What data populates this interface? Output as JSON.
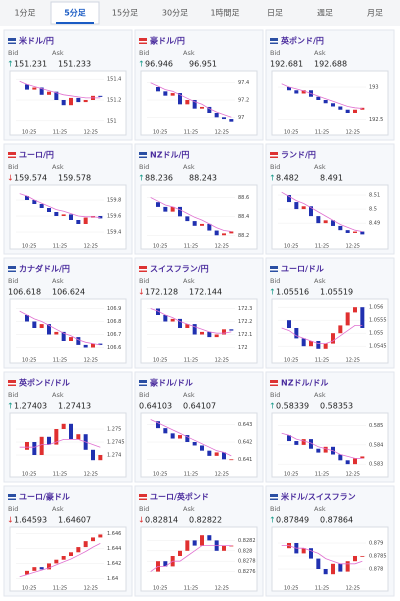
{
  "tabs": [
    "1分足",
    "5分足",
    "15分足",
    "30分足",
    "1時間足",
    "日足",
    "週足",
    "月足"
  ],
  "active_tab": 1,
  "bid_label": "Bid",
  "ask_label": "Ask",
  "time_labels": [
    "10:25",
    "11:25",
    "12:25"
  ],
  "cards": [
    {
      "name": "米ドル/円",
      "arrow": "↑",
      "bid": "151.231",
      "ask": "151.233",
      "ylim": [
        150.95,
        151.45
      ],
      "yticks": [
        151.4,
        151.2,
        151
      ],
      "closes": [
        151.35,
        151.3,
        151.32,
        151.25,
        151.28,
        151.2,
        151.15,
        151.22,
        151.18,
        151.2,
        151.24,
        151.23
      ],
      "ma": [
        151.38,
        151.35,
        151.33,
        151.31,
        151.29,
        151.27,
        151.25,
        151.24,
        151.23,
        151.22,
        151.22,
        151.22
      ]
    },
    {
      "name": "豪ドル/円",
      "arrow": "↑",
      "bid": "96.946",
      "ask": "96.951",
      "ylim": [
        96.9,
        97.5
      ],
      "yticks": [
        97.4,
        97.2,
        97
      ],
      "closes": [
        97.35,
        97.3,
        97.25,
        97.28,
        97.15,
        97.2,
        97.1,
        97.12,
        97.05,
        97.0,
        96.98,
        96.95
      ],
      "ma": [
        97.4,
        97.36,
        97.32,
        97.3,
        97.26,
        97.22,
        97.18,
        97.15,
        97.1,
        97.06,
        97.03,
        97.0
      ]
    },
    {
      "name": "英ポンド/円",
      "bid": "192.681",
      "ask": "192.688",
      "ylim": [
        192.4,
        193.2
      ],
      "yticks": [
        193,
        192.5
      ],
      "closes": [
        193.0,
        192.95,
        192.9,
        192.95,
        192.85,
        192.8,
        192.75,
        192.7,
        192.65,
        192.6,
        192.65,
        192.68
      ],
      "ma": [
        193.05,
        193.0,
        192.97,
        192.94,
        192.9,
        192.86,
        192.82,
        192.78,
        192.74,
        192.7,
        192.68,
        192.67
      ]
    },
    {
      "name": "ユーロ/円",
      "arrow": "↓",
      "bid": "159.574",
      "ask": "159.578",
      "ylim": [
        159.3,
        159.95
      ],
      "yticks": [
        159.8,
        159.6,
        159.4
      ],
      "closes": [
        159.85,
        159.8,
        159.75,
        159.7,
        159.65,
        159.6,
        159.62,
        159.55,
        159.5,
        159.58,
        159.6,
        159.57
      ],
      "ma": [
        159.88,
        159.85,
        159.8,
        159.76,
        159.72,
        159.68,
        159.66,
        159.63,
        159.6,
        159.59,
        159.59,
        159.58
      ]
    },
    {
      "name": "NZドル/円",
      "arrow": "↑",
      "bid": "88.236",
      "ask": "88.243",
      "ylim": [
        88.15,
        88.7
      ],
      "yticks": [
        88.6,
        88.4,
        88.2
      ],
      "closes": [
        88.55,
        88.5,
        88.45,
        88.5,
        88.4,
        88.35,
        88.3,
        88.32,
        88.25,
        88.2,
        88.22,
        88.24
      ],
      "ma": [
        88.6,
        88.56,
        88.52,
        88.5,
        88.47,
        88.43,
        88.39,
        88.36,
        88.32,
        88.28,
        88.25,
        88.24
      ]
    },
    {
      "name": "ランド/円",
      "arrow": "↑",
      "bid": "8.482",
      "ask": "8.491",
      "ylim": [
        8.478,
        8.515
      ],
      "yticks": [
        8.51,
        8.5,
        8.49
      ],
      "closes": [
        8.51,
        8.505,
        8.5,
        8.502,
        8.495,
        8.49,
        8.492,
        8.488,
        8.485,
        8.483,
        8.484,
        8.482
      ],
      "ma": [
        8.512,
        8.509,
        8.506,
        8.504,
        8.501,
        8.498,
        8.495,
        8.492,
        8.489,
        8.487,
        8.485,
        8.484
      ]
    },
    {
      "name": "カナダドル/円",
      "bid": "106.618",
      "ask": "106.624",
      "ylim": [
        106.55,
        106.95
      ],
      "yticks": [
        106.9,
        106.8,
        106.7,
        106.6
      ],
      "closes": [
        106.85,
        106.8,
        106.75,
        106.78,
        106.7,
        106.72,
        106.65,
        106.68,
        106.62,
        106.6,
        106.63,
        106.62
      ],
      "ma": [
        106.88,
        106.85,
        106.82,
        106.8,
        106.77,
        106.74,
        106.71,
        106.69,
        106.66,
        106.64,
        106.63,
        106.62
      ]
    },
    {
      "name": "スイスフラン/円",
      "arrow": "↓",
      "bid": "172.128",
      "ask": "172.144",
      "ylim": [
        171.95,
        172.35
      ],
      "yticks": [
        172.3,
        172.2,
        172.1,
        172
      ],
      "closes": [
        172.3,
        172.25,
        172.2,
        172.22,
        172.15,
        172.18,
        172.1,
        172.12,
        172.08,
        172.1,
        172.14,
        172.13
      ],
      "ma": [
        172.3,
        172.28,
        172.25,
        172.23,
        172.2,
        172.18,
        172.16,
        172.14,
        172.12,
        172.11,
        172.11,
        172.12
      ]
    },
    {
      "name": "ユーロ/ドル",
      "arrow": "↑",
      "bid": "1.05516",
      "ask": "1.05519",
      "ylim": [
        1.0542,
        1.0562
      ],
      "yticks": [
        1.056,
        1.0555,
        1.055,
        1.0545
      ],
      "closes": [
        1.0555,
        1.0552,
        1.0548,
        1.0545,
        1.0547,
        1.0544,
        1.0546,
        1.055,
        1.0553,
        1.0558,
        1.056,
        1.0552
      ],
      "ma": [
        1.0552,
        1.0551,
        1.0549,
        1.0548,
        1.0547,
        1.0546,
        1.0546,
        1.0547,
        1.0549,
        1.0551,
        1.0553,
        1.0553
      ]
    },
    {
      "name": "英ポンド/ドル",
      "arrow": "↑",
      "bid": "1.27403",
      "ask": "1.27413",
      "ylim": [
        1.2735,
        1.2755
      ],
      "yticks": [
        1.275,
        1.2745,
        1.274
      ],
      "closes": [
        1.2742,
        1.2745,
        1.274,
        1.2747,
        1.2744,
        1.275,
        1.2752,
        1.2746,
        1.2748,
        1.2742,
        1.2738,
        1.274
      ],
      "ma": [
        1.2743,
        1.2743,
        1.2743,
        1.2744,
        1.2744,
        1.2745,
        1.2746,
        1.2746,
        1.2746,
        1.2745,
        1.2744,
        1.2743
      ]
    },
    {
      "name": "豪ドル/ドル",
      "bid": "0.64103",
      "ask": "0.64107",
      "ylim": [
        0.6405,
        0.6435
      ],
      "yticks": [
        0.643,
        0.642,
        0.641
      ],
      "closes": [
        0.6432,
        0.6428,
        0.6425,
        0.6422,
        0.6424,
        0.642,
        0.6418,
        0.6415,
        0.6412,
        0.6414,
        0.641,
        0.641
      ],
      "ma": [
        0.6433,
        0.6431,
        0.6429,
        0.6427,
        0.6425,
        0.6423,
        0.6421,
        0.6419,
        0.6417,
        0.6415,
        0.6414,
        0.6412
      ]
    },
    {
      "name": "NZドル/ドル",
      "arrow": "↑",
      "bid": "0.58339",
      "ask": "0.58353",
      "ylim": [
        0.5828,
        0.5855
      ],
      "yticks": [
        0.585,
        0.584,
        0.583
      ],
      "closes": [
        0.5845,
        0.5842,
        0.584,
        0.5843,
        0.5838,
        0.5836,
        0.5839,
        0.5835,
        0.5832,
        0.583,
        0.5833,
        0.5834
      ],
      "ma": [
        0.5846,
        0.5845,
        0.5843,
        0.5842,
        0.5841,
        0.5839,
        0.5838,
        0.5837,
        0.5835,
        0.5834,
        0.5833,
        0.5833
      ]
    },
    {
      "name": "ユーロ/豪ドル",
      "arrow": "↓",
      "bid": "1.64593",
      "ask": "1.64607",
      "ylim": [
        1.6395,
        1.6465
      ],
      "yticks": [
        1.646,
        1.644,
        1.642,
        1.64
      ],
      "closes": [
        1.6405,
        1.641,
        1.6415,
        1.6412,
        1.642,
        1.6425,
        1.643,
        1.6435,
        1.6442,
        1.645,
        1.6455,
        1.6459
      ],
      "ma": [
        1.6402,
        1.6405,
        1.6408,
        1.6411,
        1.6414,
        1.6418,
        1.6422,
        1.6426,
        1.6431,
        1.6436,
        1.6442,
        1.6447
      ]
    },
    {
      "name": "ユーロ/英ポンド",
      "arrow": "↓",
      "bid": "0.82814",
      "ask": "0.82822",
      "ylim": [
        0.8274,
        0.8284
      ],
      "yticks": [
        0.8282,
        0.828,
        0.8278,
        0.8276
      ],
      "closes": [
        0.8276,
        0.8278,
        0.8277,
        0.8279,
        0.828,
        0.8282,
        0.8281,
        0.8283,
        0.8282,
        0.828,
        0.8281,
        0.8281
      ],
      "ma": [
        0.8276,
        0.8277,
        0.8277,
        0.8278,
        0.8278,
        0.8279,
        0.828,
        0.8281,
        0.8281,
        0.8281,
        0.8281,
        0.8281
      ]
    },
    {
      "name": "米ドル/スイスフラン",
      "arrow": "↑",
      "bid": "0.87849",
      "ask": "0.87864",
      "ylim": [
        0.8775,
        0.8795
      ],
      "yticks": [
        0.879,
        0.8785,
        0.878
      ],
      "closes": [
        0.8788,
        0.879,
        0.8786,
        0.8788,
        0.8784,
        0.878,
        0.8778,
        0.8782,
        0.8779,
        0.8783,
        0.8785,
        0.8785
      ],
      "ma": [
        0.8789,
        0.8789,
        0.8788,
        0.8788,
        0.8787,
        0.8786,
        0.8784,
        0.8783,
        0.8782,
        0.8782,
        0.8782,
        0.8783
      ]
    }
  ]
}
